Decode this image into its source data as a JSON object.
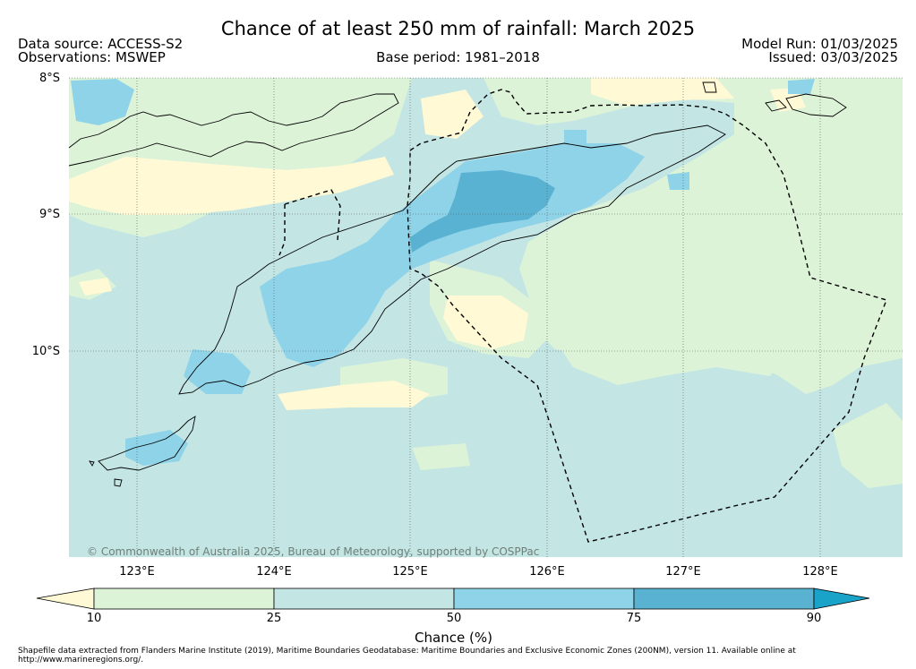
{
  "header": {
    "title": "Chance of at least 250 mm of rainfall: March 2025",
    "data_source": "Data source: ACCESS-S2",
    "observations": "Observations: MSWEP",
    "base_period": "Base period: 1981–2018",
    "model_run": "Model Run: 01/03/2025",
    "issued": "Issued: 03/03/2025"
  },
  "map": {
    "lat_labels": [
      "8°S",
      "9°S",
      "10°S"
    ],
    "lon_labels": [
      "123°E",
      "124°E",
      "125°E",
      "126°E",
      "127°E",
      "128°E"
    ],
    "credit": "© Commonwealth of Australia 2025, Bureau of Meteorology, supported by COSPPac"
  },
  "colorbar": {
    "title": "Chance (%)",
    "tick_labels": [
      "10",
      "25",
      "50",
      "75",
      "90"
    ],
    "colors": [
      "#fff9d6",
      "#ddf3d8",
      "#c3e5e3",
      "#8fd3e9",
      "#5ab2d3",
      "#1aa3c9"
    ]
  },
  "footer": {
    "note": "Shapefile data extracted from Flanders Marine Institute (2019), Maritime Boundaries Geodatabase: Maritime Boundaries and Exclusive Economic Zones (200NM), version 11. Available online at http://www.marineregions.org/."
  }
}
